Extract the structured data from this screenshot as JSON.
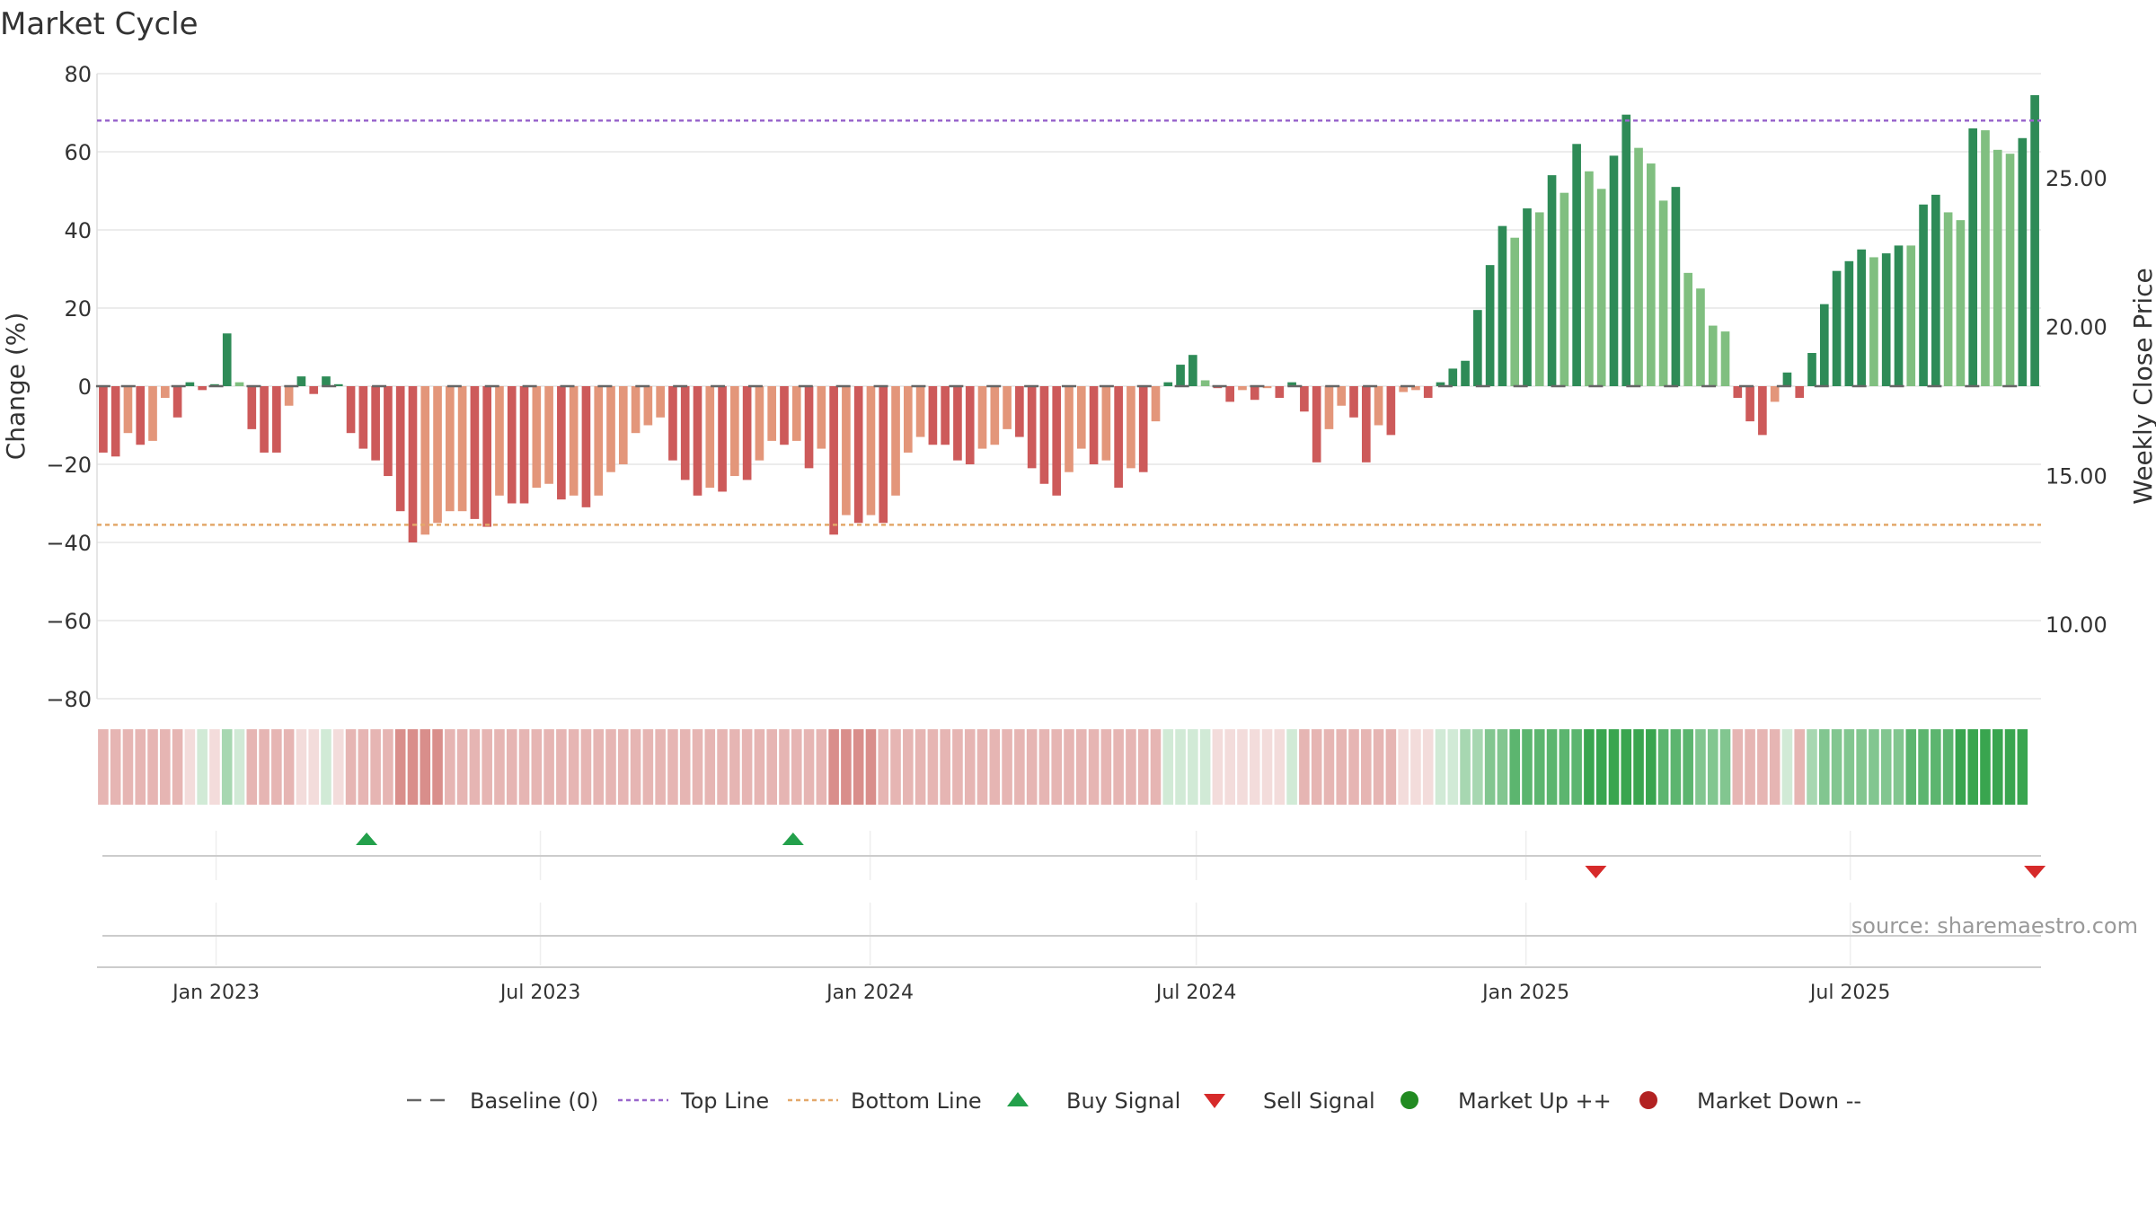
{
  "chart_data": {
    "type": "bar",
    "title": "Market Cycle",
    "ylabel": "Change (%)",
    "y2label": "Weekly Close Price",
    "ylim": [
      -80,
      80
    ],
    "yticks": [
      80,
      60,
      40,
      20,
      0,
      -20,
      -40,
      -60,
      -80
    ],
    "ytick_labels": [
      "80",
      "60",
      "40",
      "20",
      "0",
      "−20",
      "−40",
      "−60",
      "−80"
    ],
    "y2lim": [
      7.5,
      28.5
    ],
    "y2ticks": [
      25,
      20,
      15,
      10
    ],
    "y2tick_labels": [
      "25.00",
      "20.00",
      "15.00",
      "10.00"
    ],
    "top_line": 68,
    "bottom_line": -35.5,
    "baseline": 0,
    "x_start": "2022-10-30",
    "x_end": "2025-10-12",
    "xticks": [
      {
        "date": "2023-01-01",
        "label": "Jan 2023"
      },
      {
        "date": "2023-07-01",
        "label": "Jul 2023"
      },
      {
        "date": "2024-01-01",
        "label": "Jan 2024"
      },
      {
        "date": "2024-07-01",
        "label": "Jul 2024"
      },
      {
        "date": "2025-01-01",
        "label": "Jan 2025"
      },
      {
        "date": "2025-07-01",
        "label": "Jul 2025"
      }
    ],
    "bar_values": [
      -17,
      -18,
      -12,
      -15,
      -14,
      -3,
      -8,
      1,
      -1,
      0.5,
      13.5,
      1,
      -11,
      -17,
      -17,
      -5,
      2.5,
      -2,
      2.5,
      0.5,
      -12,
      -16,
      -19,
      -23,
      -32,
      -40,
      -38,
      -35,
      -32,
      -32,
      -34,
      -36,
      -28,
      -30,
      -30,
      -26,
      -25,
      -29,
      -28,
      -31,
      -28,
      -22,
      -20,
      -12,
      -10,
      -8,
      -19,
      -24,
      -28,
      -26,
      -27,
      -23,
      -24,
      -19,
      -14,
      -15,
      -14,
      -21,
      -16,
      -38,
      -33,
      -35,
      -33,
      -35,
      -28,
      -17,
      -13,
      -15,
      -15,
      -19,
      -20,
      -16,
      -15,
      -11,
      -13,
      -21,
      -25,
      -28,
      -22,
      -16,
      -20,
      -19,
      -26,
      -21,
      -22,
      -9,
      1,
      5.5,
      8,
      1.5,
      -0.5,
      -4,
      -1,
      -3.5,
      -0.5,
      -3,
      1,
      -6.5,
      -19.5,
      -11,
      -5,
      -8,
      -19.5,
      -10,
      -12.5,
      -1.5,
      -1,
      -3,
      1,
      4.5,
      6.5,
      19.5,
      31,
      41,
      38,
      45.5,
      44.5,
      54,
      49.5,
      62,
      55,
      50.5,
      59,
      69.5,
      61,
      57,
      47.5,
      51,
      29,
      25,
      15.5,
      14,
      -3,
      -9,
      -12.5,
      -4,
      3.5,
      -3,
      8.5,
      21,
      29.5,
      32,
      35,
      33,
      34,
      36,
      36,
      46.5,
      49,
      44.5,
      42.5,
      66,
      65.5,
      60.5,
      59.5,
      63.5,
      74.5
    ],
    "bar_colors": [
      "#cd5a5a",
      "#cd5a5a",
      "#e3967a",
      "#cd5a5a",
      "#e3967a",
      "#e3967a",
      "#cd5a5a",
      "#2e8b57",
      "#cd5a5a",
      "#2e8b57",
      "#2e8b57",
      "#80bf80",
      "#cd5a5a",
      "#cd5a5a",
      "#cd5a5a",
      "#e3967a",
      "#2e8b57",
      "#cd5a5a",
      "#2e8b57",
      "#2e8b57",
      "#cd5a5a",
      "#cd5a5a",
      "#cd5a5a",
      "#cd5a5a",
      "#cd5a5a",
      "#cd5a5a",
      "#e3967a",
      "#e3967a",
      "#e3967a",
      "#e3967a",
      "#cd5a5a",
      "#cd5a5a",
      "#e3967a",
      "#cd5a5a",
      "#cd5a5a",
      "#e3967a",
      "#e3967a",
      "#cd5a5a",
      "#e3967a",
      "#cd5a5a",
      "#e3967a",
      "#e3967a",
      "#e3967a",
      "#e3967a",
      "#e3967a",
      "#e3967a",
      "#cd5a5a",
      "#cd5a5a",
      "#cd5a5a",
      "#e3967a",
      "#cd5a5a",
      "#e3967a",
      "#cd5a5a",
      "#e3967a",
      "#e3967a",
      "#cd5a5a",
      "#e3967a",
      "#cd5a5a",
      "#e3967a",
      "#cd5a5a",
      "#e3967a",
      "#cd5a5a",
      "#e3967a",
      "#cd5a5a",
      "#e3967a",
      "#e3967a",
      "#e3967a",
      "#cd5a5a",
      "#cd5a5a",
      "#cd5a5a",
      "#cd5a5a",
      "#e3967a",
      "#e3967a",
      "#e3967a",
      "#cd5a5a",
      "#cd5a5a",
      "#cd5a5a",
      "#cd5a5a",
      "#e3967a",
      "#e3967a",
      "#cd5a5a",
      "#e3967a",
      "#cd5a5a",
      "#e3967a",
      "#cd5a5a",
      "#e3967a",
      "#2e8b57",
      "#2e8b57",
      "#2e8b57",
      "#80bf80",
      "#cd5a5a",
      "#cd5a5a",
      "#e3967a",
      "#cd5a5a",
      "#e3967a",
      "#cd5a5a",
      "#2e8b57",
      "#cd5a5a",
      "#cd5a5a",
      "#e3967a",
      "#e3967a",
      "#cd5a5a",
      "#cd5a5a",
      "#e3967a",
      "#cd5a5a",
      "#e3967a",
      "#e3967a",
      "#cd5a5a",
      "#2e8b57",
      "#2e8b57",
      "#2e8b57",
      "#2e8b57",
      "#2e8b57",
      "#2e8b57",
      "#80bf80",
      "#2e8b57",
      "#80bf80",
      "#2e8b57",
      "#80bf80",
      "#2e8b57",
      "#80bf80",
      "#80bf80",
      "#2e8b57",
      "#2e8b57",
      "#80bf80",
      "#80bf80",
      "#80bf80",
      "#2e8b57",
      "#80bf80",
      "#80bf80",
      "#80bf80",
      "#80bf80",
      "#cd5a5a",
      "#cd5a5a",
      "#cd5a5a",
      "#e3967a",
      "#2e8b57",
      "#cd5a5a",
      "#2e8b57",
      "#2e8b57",
      "#2e8b57",
      "#2e8b57",
      "#2e8b57",
      "#80bf80",
      "#2e8b57",
      "#2e8b57",
      "#80bf80",
      "#2e8b57",
      "#2e8b57",
      "#80bf80",
      "#80bf80",
      "#2e8b57",
      "#80bf80",
      "#80bf80",
      "#80bf80",
      "#2e8b57",
      "#2e8b57"
    ],
    "strength_band": [
      -2,
      -2,
      -2,
      -2,
      -2,
      -2,
      -2,
      -1,
      1,
      -1,
      2,
      1,
      -2,
      -2,
      -2,
      -2,
      -1,
      -1,
      1,
      -1,
      -2,
      -2,
      -2,
      -2,
      -3,
      -3,
      -3,
      -3,
      -2,
      -2,
      -2,
      -2,
      -2,
      -2,
      -2,
      -2,
      -2,
      -2,
      -2,
      -2,
      -2,
      -2,
      -2,
      -2,
      -2,
      -2,
      -2,
      -2,
      -2,
      -2,
      -2,
      -2,
      -2,
      -2,
      -2,
      -2,
      -2,
      -2,
      -2,
      -3,
      -3,
      -3,
      -3,
      -2,
      -2,
      -2,
      -2,
      -2,
      -2,
      -2,
      -2,
      -2,
      -2,
      -2,
      -2,
      -2,
      -2,
      -2,
      -2,
      -2,
      -2,
      -2,
      -2,
      -2,
      -2,
      -2,
      1,
      1,
      1,
      1,
      -1,
      -1,
      -1,
      -1,
      -1,
      -1,
      1,
      -2,
      -2,
      -2,
      -2,
      -2,
      -2,
      -2,
      -2,
      -1,
      -1,
      -1,
      1,
      1,
      2,
      2,
      3,
      3,
      4,
      4,
      4,
      4,
      4,
      4,
      5,
      5,
      5,
      5,
      5,
      5,
      4,
      4,
      4,
      3,
      3,
      3,
      -2,
      -2,
      -2,
      -2,
      1,
      -2,
      2,
      3,
      3,
      3,
      3,
      3,
      3,
      3,
      4,
      4,
      4,
      4,
      5,
      5,
      5,
      5,
      5,
      5
    ],
    "baseline_marks": [
      "2022-10-30",
      "2022-11-13",
      "2022-12-11",
      "2023-01-01",
      "2023-01-22",
      "2023-02-12",
      "2023-03-05",
      "2023-04-02",
      "2023-05-14",
      "2023-06-04",
      "2023-06-25",
      "2023-07-16",
      "2023-08-06",
      "2023-08-27",
      "2023-09-17",
      "2023-10-08",
      "2023-10-29",
      "2023-11-26",
      "2023-12-17",
      "2024-01-07",
      "2024-01-28",
      "2024-02-18",
      "2024-03-10",
      "2024-03-31",
      "2024-04-21",
      "2024-05-12",
      "2024-06-02",
      "2024-06-23",
      "2024-07-14",
      "2024-08-04",
      "2024-08-25",
      "2024-09-15",
      "2024-10-06",
      "2024-10-27",
      "2024-11-17",
      "2024-12-08",
      "2024-12-29",
      "2025-01-19",
      "2025-02-09",
      "2025-03-02",
      "2025-03-23",
      "2025-04-13",
      "2025-05-04",
      "2025-05-25",
      "2025-06-15",
      "2025-07-06",
      "2025-07-27",
      "2025-08-17",
      "2025-09-07",
      "2025-09-28"
    ],
    "buy_signals": [
      "2023-03-26",
      "2023-11-19"
    ],
    "sell_signals": [
      "2025-02-09",
      "2025-10-12"
    ],
    "legend": [
      {
        "key": "baseline",
        "label": "Baseline (0)"
      },
      {
        "key": "top",
        "label": "Top Line"
      },
      {
        "key": "bottom",
        "label": "Bottom Line"
      },
      {
        "key": "buy",
        "label": "Buy Signal"
      },
      {
        "key": "sell",
        "label": "Sell Signal"
      },
      {
        "key": "up",
        "label": "Market Up ++"
      },
      {
        "key": "down",
        "label": "Market Down --"
      }
    ],
    "source": "source: sharemaestro.com",
    "grid": true,
    "legend_position": "bottom"
  },
  "colors": {
    "bar_dark_green": "#2e8b57",
    "bar_light_green": "#80bf80",
    "bar_dark_red": "#cd5a5a",
    "bar_light_red": "#e3967a",
    "top_line": "#9966cc",
    "bottom_line": "#e3a86a",
    "buy": "#23a04b",
    "sell": "#d62a2a",
    "market_up": "#228b22",
    "market_down": "#b22222",
    "baseline": "#666666"
  }
}
